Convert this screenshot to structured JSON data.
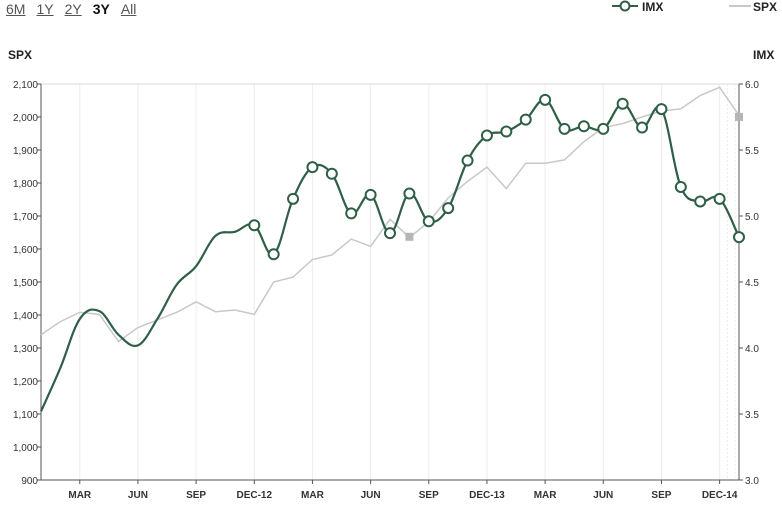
{
  "range_selector": {
    "buttons": [
      {
        "label": "6M",
        "active": false
      },
      {
        "label": "1Y",
        "active": false
      },
      {
        "label": "2Y",
        "active": false
      },
      {
        "label": "3Y",
        "active": true
      },
      {
        "label": "All",
        "active": false
      }
    ]
  },
  "legend": {
    "imx_label": "IMX",
    "spx_label": "SPX"
  },
  "colors": {
    "imx": "#2f5f46",
    "spx": "#c8c8c8",
    "grid": "#ececec",
    "axis": "#555555"
  },
  "chart_data": {
    "type": "line",
    "left_axis_title": "SPX",
    "right_axis_title": "IMX",
    "x_tick_labels": [
      "MAR",
      "JUN",
      "SEP",
      "DEC-12",
      "MAR",
      "JUN",
      "SEP",
      "DEC-13",
      "MAR",
      "JUN",
      "SEP",
      "DEC-14"
    ],
    "x_tick_index": [
      2,
      5,
      8,
      11,
      14,
      17,
      20,
      23,
      26,
      29,
      32,
      35
    ],
    "x_range": [
      0,
      36
    ],
    "y_left_ticks": [
      "900",
      "1,000",
      "1,100",
      "1,200",
      "1,300",
      "1,400",
      "1,500",
      "1,600",
      "1,700",
      "1,800",
      "1,900",
      "2,000",
      "2,100"
    ],
    "y_left_range": [
      900,
      2100
    ],
    "y_right_ticks": [
      "3.0",
      "3.5",
      "4.0",
      "4.5",
      "5.0",
      "5.5",
      "6.0"
    ],
    "y_right_range": [
      3.0,
      6.0
    ],
    "series": [
      {
        "name": "IMX",
        "axis": "right",
        "smooth_start": [
          [
            0,
            3.52
          ],
          [
            1,
            3.85
          ],
          [
            2,
            4.22
          ],
          [
            3,
            4.28
          ],
          [
            4,
            4.1
          ],
          [
            5,
            4.02
          ],
          [
            6,
            4.22
          ],
          [
            7,
            4.48
          ],
          [
            8,
            4.62
          ],
          [
            9,
            4.85
          ],
          [
            10,
            4.88
          ]
        ],
        "points": [
          [
            11,
            4.93
          ],
          [
            12,
            4.71
          ],
          [
            13,
            5.13
          ],
          [
            14,
            5.37
          ],
          [
            15,
            5.32
          ],
          [
            16,
            5.02
          ],
          [
            17,
            5.16
          ],
          [
            18,
            4.87
          ],
          [
            19,
            5.17
          ],
          [
            20,
            4.96
          ],
          [
            21,
            5.06
          ],
          [
            22,
            5.42
          ],
          [
            23,
            5.61
          ],
          [
            24,
            5.64
          ],
          [
            25,
            5.73
          ],
          [
            26,
            5.88
          ],
          [
            27,
            5.66
          ],
          [
            28,
            5.68
          ],
          [
            29,
            5.66
          ],
          [
            30,
            5.85
          ],
          [
            31,
            5.67
          ],
          [
            32,
            5.81
          ],
          [
            33,
            5.22
          ],
          [
            34,
            5.11
          ],
          [
            35,
            5.13
          ],
          [
            36,
            4.84
          ]
        ]
      },
      {
        "name": "SPX",
        "axis": "left",
        "values": [
          [
            0,
            1340
          ],
          [
            1,
            1380
          ],
          [
            2,
            1408
          ],
          [
            3,
            1402
          ],
          [
            4,
            1320
          ],
          [
            5,
            1362
          ],
          [
            6,
            1385
          ],
          [
            7,
            1408
          ],
          [
            8,
            1440
          ],
          [
            9,
            1410
          ],
          [
            10,
            1415
          ],
          [
            11,
            1402
          ],
          [
            12,
            1500
          ],
          [
            13,
            1515
          ],
          [
            14,
            1568
          ],
          [
            15,
            1582
          ],
          [
            16,
            1630
          ],
          [
            17,
            1608
          ],
          [
            18,
            1690
          ],
          [
            19,
            1635
          ],
          [
            20,
            1682
          ],
          [
            21,
            1755
          ],
          [
            22,
            1805
          ],
          [
            23,
            1848
          ],
          [
            24,
            1783
          ],
          [
            25,
            1860
          ],
          [
            26,
            1860
          ],
          [
            27,
            1870
          ],
          [
            28,
            1925
          ],
          [
            29,
            1968
          ],
          [
            30,
            1980
          ],
          [
            31,
            2000
          ],
          [
            32,
            2018
          ],
          [
            33,
            2025
          ],
          [
            34,
            2065
          ],
          [
            35,
            2090
          ],
          [
            36,
            2005
          ]
        ],
        "marker_squares": [
          [
            19,
            1637
          ],
          [
            36,
            2000
          ]
        ]
      }
    ]
  }
}
